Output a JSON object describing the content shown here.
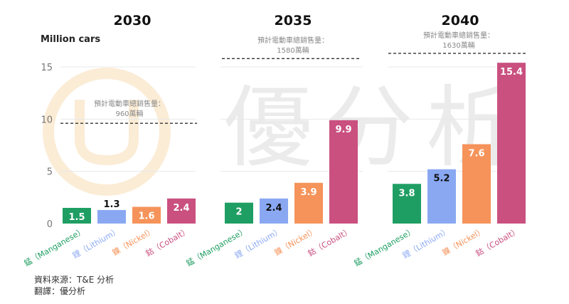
{
  "watermark": {
    "text": "優分析",
    "logo_color": "#f3c98a",
    "text_color": "#dcdcdc"
  },
  "unit_label": "Million cars",
  "chart_data": [
    {
      "type": "bar",
      "title": "2030",
      "categories": [
        "錳（Manganese）",
        "鋰（Lithium）",
        "鎳（Nickel）",
        "鈷（Cobalt）"
      ],
      "values": [
        1.5,
        1.3,
        1.6,
        2.4
      ],
      "ylim": [
        0,
        16
      ],
      "yticks": [
        0,
        5,
        10,
        15
      ],
      "ylabel": "Million cars",
      "grid": true,
      "reference_line": {
        "value": 9.6,
        "label_lines": [
          "預計電動車總銷售量：",
          "960萬輛"
        ]
      }
    },
    {
      "type": "bar",
      "title": "2035",
      "categories": [
        "錳（Manganese）",
        "鋰（Lithium）",
        "鎳（Nickel）",
        "鈷（Cobalt）"
      ],
      "values": [
        2,
        2.4,
        3.9,
        9.9
      ],
      "ylim": [
        0,
        16
      ],
      "grid": true,
      "reference_line": {
        "value": 15.8,
        "label_lines": [
          "預計電動車總銷售量：",
          "1580萬輛"
        ]
      }
    },
    {
      "type": "bar",
      "title": "2040",
      "categories": [
        "錳（Manganese）",
        "鋰（Lithium）",
        "鎳（Nickel）",
        "鈷（Cobalt）"
      ],
      "values": [
        3.8,
        5.2,
        7.6,
        15.4
      ],
      "ylim": [
        0,
        16
      ],
      "grid": true,
      "reference_line": {
        "value": 16.3,
        "label_lines": [
          "預計電動車總銷售量：",
          "1630萬輛"
        ]
      }
    }
  ],
  "colors": [
    "#1f9e63",
    "#8aa8f2",
    "#f5935a",
    "#c9507f"
  ],
  "label_text_colors": [
    "#ffffff",
    "#111111",
    "#ffffff",
    "#ffffff"
  ],
  "value_labels_2030": [
    "1.5",
    "1.3",
    "1.6",
    "2.4"
  ],
  "value_labels_2035": [
    "2",
    "2.4",
    "3.9",
    "9.9"
  ],
  "value_labels_2040": [
    "3.8",
    "5.2",
    "7.6",
    "15.4"
  ],
  "source": [
    "資料來源：T&E 分析",
    "翻譯：優分析"
  ]
}
